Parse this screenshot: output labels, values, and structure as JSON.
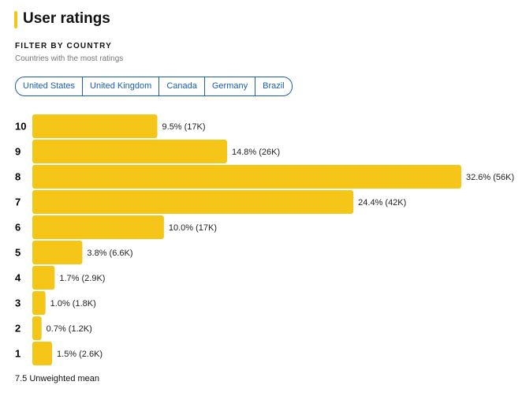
{
  "header": {
    "title": "User ratings"
  },
  "filter": {
    "label": "FILTER BY COUNTRY",
    "description": "Countries with the most ratings",
    "options": [
      "United States",
      "United Kingdom",
      "Canada",
      "Germany",
      "Brazil"
    ]
  },
  "chart_data": {
    "type": "bar",
    "orientation": "horizontal",
    "categories": [
      "10",
      "9",
      "8",
      "7",
      "6",
      "5",
      "4",
      "3",
      "2",
      "1"
    ],
    "values": [
      9.5,
      14.8,
      32.6,
      24.4,
      10.0,
      3.8,
      1.7,
      1.0,
      0.7,
      1.5
    ],
    "value_labels": [
      "9.5% (17K)",
      "14.8% (26K)",
      "32.6% (56K)",
      "24.4% (42K)",
      "10.0% (17K)",
      "3.8% (6.6K)",
      "1.7% (2.9K)",
      "1.0% (1.8K)",
      "0.7% (1.2K)",
      "1.5% (2.6K)"
    ],
    "color": "#f5c518"
  },
  "footnote": "7.5 Unweighted mean"
}
